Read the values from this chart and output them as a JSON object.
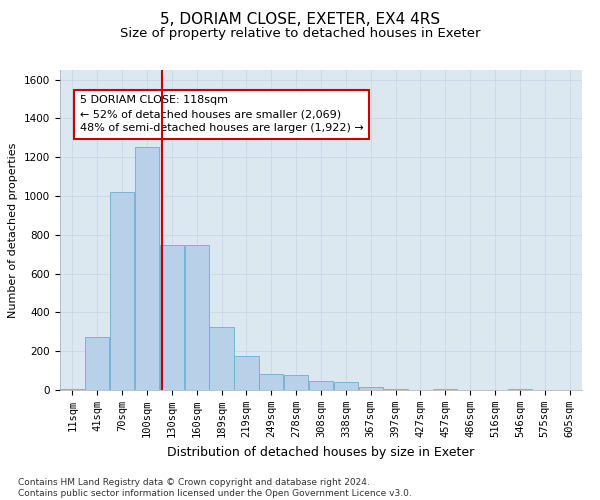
{
  "title": "5, DORIAM CLOSE, EXETER, EX4 4RS",
  "subtitle": "Size of property relative to detached houses in Exeter",
  "xlabel": "Distribution of detached houses by size in Exeter",
  "ylabel": "Number of detached properties",
  "bin_labels": [
    "11sqm",
    "41sqm",
    "70sqm",
    "100sqm",
    "130sqm",
    "160sqm",
    "189sqm",
    "219sqm",
    "249sqm",
    "278sqm",
    "308sqm",
    "338sqm",
    "367sqm",
    "397sqm",
    "427sqm",
    "457sqm",
    "486sqm",
    "516sqm",
    "546sqm",
    "575sqm",
    "605sqm"
  ],
  "bin_values": [
    11,
    41,
    70,
    100,
    130,
    160,
    189,
    219,
    249,
    278,
    308,
    338,
    367,
    397,
    427,
    457,
    486,
    516,
    546,
    575,
    605
  ],
  "bar_heights": [
    5,
    275,
    1020,
    1255,
    750,
    750,
    325,
    175,
    80,
    75,
    45,
    40,
    15,
    5,
    0,
    5,
    0,
    0,
    5,
    0,
    0
  ],
  "bar_color": "#b8d0e8",
  "bar_edge_color": "#6baed6",
  "grid_color": "#c8d8e8",
  "bg_color": "#dce8f0",
  "red_line_x": 118,
  "annotation_text_line1": "5 DORIAM CLOSE: 118sqm",
  "annotation_text_line2": "← 52% of detached houses are smaller (2,069)",
  "annotation_text_line3": "48% of semi-detached houses are larger (1,922) →",
  "annotation_box_color": "#cc0000",
  "ylim": [
    0,
    1650
  ],
  "yticks": [
    0,
    200,
    400,
    600,
    800,
    1000,
    1200,
    1400,
    1600
  ],
  "footer": "Contains HM Land Registry data © Crown copyright and database right 2024.\nContains public sector information licensed under the Open Government Licence v3.0.",
  "title_fontsize": 11,
  "subtitle_fontsize": 9.5,
  "xlabel_fontsize": 9,
  "ylabel_fontsize": 8,
  "tick_fontsize": 7.5,
  "annotation_fontsize": 8,
  "footer_fontsize": 6.5
}
